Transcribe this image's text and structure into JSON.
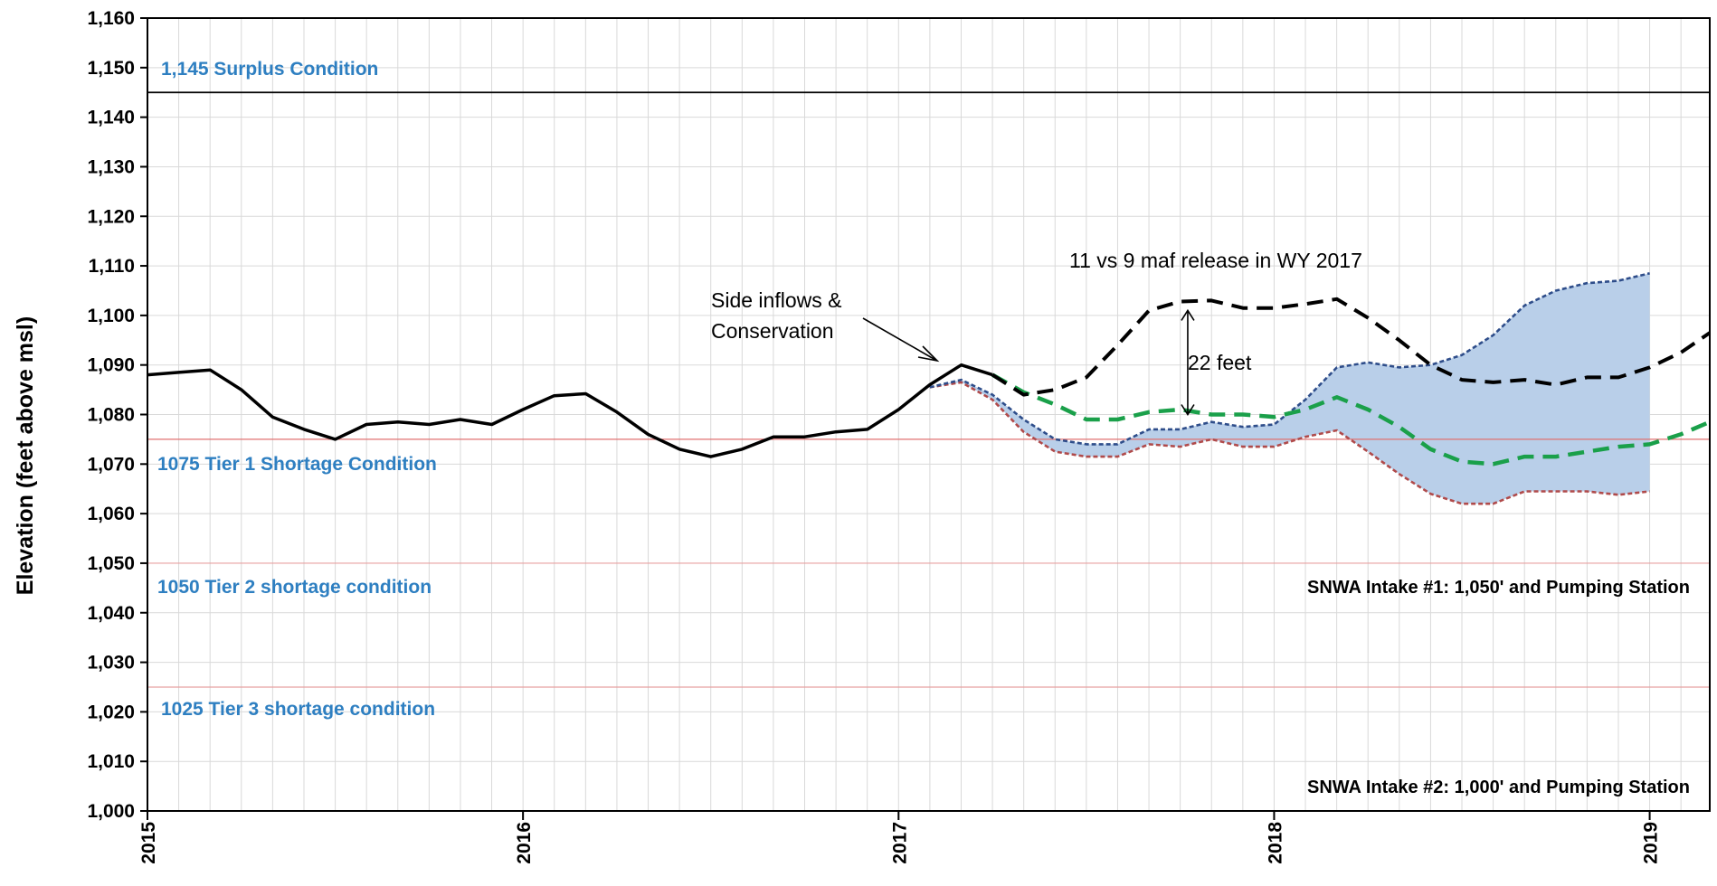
{
  "chart_data": {
    "type": "line",
    "title": "",
    "ylabel": "Elevation (feet above msl)",
    "xlabel": "",
    "xlim": [
      2015.0,
      2019.16
    ],
    "ylim": [
      1000,
      1160
    ],
    "y_ticks": [
      1000,
      1010,
      1020,
      1030,
      1040,
      1050,
      1060,
      1070,
      1080,
      1090,
      1100,
      1110,
      1120,
      1130,
      1140,
      1150,
      1160
    ],
    "y_tick_labels": [
      "1,000",
      "1,010",
      "1,020",
      "1,030",
      "1,040",
      "1,050",
      "1,060",
      "1,070",
      "1,080",
      "1,090",
      "1,100",
      "1,110",
      "1,120",
      "1,130",
      "1,140",
      "1,150",
      "1,160"
    ],
    "x_ticks": [
      2015,
      2016,
      2017,
      2018,
      2019
    ],
    "x_tick_labels": [
      "2015",
      "2016",
      "2017",
      "2018",
      "2019"
    ],
    "grid": true,
    "thresholds": [
      {
        "value": 1145,
        "label": "1,145 Surplus Condition",
        "color": "#000000"
      },
      {
        "value": 1075,
        "label": "1075 Tier 1 Shortage Condition",
        "color": "#e07070"
      },
      {
        "value": 1050,
        "label": "1050 Tier 2 shortage condition",
        "color": "#e8a0a0"
      },
      {
        "value": 1025,
        "label": "1025 Tier 3 shortage condition",
        "color": "#e8a0a0"
      }
    ],
    "intake_labels": [
      {
        "value": 1050,
        "label": "SNWA Intake #1: 1,050' and Pumping Station"
      },
      {
        "value": 1000,
        "label": "SNWA Intake #2: 1,000' and Pumping Station"
      }
    ],
    "series": [
      {
        "style": "solid-black",
        "x": [
          2015.0,
          2015.083,
          2015.167,
          2015.25,
          2015.333,
          2015.417,
          2015.5,
          2015.583,
          2015.667,
          2015.75,
          2015.833,
          2015.917,
          2016.0,
          2016.083,
          2016.167,
          2016.25,
          2016.333,
          2016.417,
          2016.5,
          2016.583,
          2016.667,
          2016.75,
          2016.833,
          2016.917,
          2017.0,
          2017.083,
          2017.167,
          2017.25
        ],
        "y": [
          1088,
          1088.5,
          1089,
          1085,
          1079.5,
          1077,
          1075,
          1078,
          1078.5,
          1078,
          1079,
          1078,
          1081,
          1083.8,
          1084.2,
          1080.5,
          1076,
          1073,
          1071.5,
          1073,
          1075.5,
          1075.5,
          1076.5,
          1077,
          1081,
          1086,
          1090,
          1088
        ]
      },
      {
        "style": "dashed-black",
        "x": [
          2017.25,
          2017.333,
          2017.417,
          2017.5,
          2017.583,
          2017.667,
          2017.75,
          2017.833,
          2017.917,
          2018.0,
          2018.083,
          2018.167,
          2018.25,
          2018.333,
          2018.417,
          2018.5,
          2018.583,
          2018.667,
          2018.75,
          2018.833,
          2018.917,
          2019.0,
          2019.083,
          2019.16
        ],
        "y": [
          1088,
          1084,
          1085,
          1087.5,
          1094,
          1101,
          1102.8,
          1103,
          1101.5,
          1101.5,
          1102.3,
          1103.3,
          1099.5,
          1095,
          1090,
          1087,
          1086.5,
          1087,
          1086,
          1087.5,
          1087.5,
          1089.5,
          1092.5,
          1096.5
        ]
      },
      {
        "style": "dashed-green",
        "x": [
          2017.25,
          2017.333,
          2017.417,
          2017.5,
          2017.583,
          2017.667,
          2017.75,
          2017.833,
          2017.917,
          2018.0,
          2018.083,
          2018.167,
          2018.25,
          2018.333,
          2018.417,
          2018.5,
          2018.583,
          2018.667,
          2018.75,
          2018.833,
          2018.917,
          2019.0,
          2019.083,
          2019.16
        ],
        "y": [
          1088,
          1084.5,
          1082,
          1079,
          1079,
          1080.5,
          1081,
          1080,
          1080,
          1079.5,
          1081,
          1083.5,
          1081,
          1077.5,
          1073,
          1070.5,
          1070,
          1071.5,
          1071.5,
          1072.5,
          1073.5,
          1074,
          1076,
          1078.5
        ]
      },
      {
        "style": "dotted-blue",
        "x": [
          2017.083,
          2017.167,
          2017.25,
          2017.333,
          2017.417,
          2017.5,
          2017.583,
          2017.667,
          2017.75,
          2017.833,
          2017.917,
          2018.0,
          2018.083,
          2018.167,
          2018.25,
          2018.333,
          2018.417,
          2018.5,
          2018.583,
          2018.667,
          2018.75,
          2018.833,
          2018.917,
          2019.0
        ],
        "y": [
          1085.5,
          1087,
          1084,
          1079,
          1075,
          1074,
          1074,
          1077,
          1077,
          1078.5,
          1077.5,
          1078,
          1083,
          1089.5,
          1090.5,
          1089.5,
          1090,
          1092,
          1096,
          1102,
          1105,
          1106.5,
          1107,
          1108.5
        ]
      },
      {
        "style": "dotted-red",
        "x": [
          2017.083,
          2017.167,
          2017.25,
          2017.333,
          2017.417,
          2017.5,
          2017.583,
          2017.667,
          2017.75,
          2017.833,
          2017.917,
          2018.0,
          2018.083,
          2018.167,
          2018.25,
          2018.333,
          2018.417,
          2018.5,
          2018.583,
          2018.667,
          2018.75,
          2018.833,
          2018.917,
          2019.0
        ],
        "y": [
          1085.5,
          1086.5,
          1083,
          1076.5,
          1072.5,
          1071.5,
          1071.5,
          1074,
          1073.5,
          1075,
          1073.5,
          1073.5,
          1075.5,
          1076.8,
          1072.5,
          1068,
          1064,
          1062,
          1062,
          1064.5,
          1064.5,
          1064.5,
          1063.8,
          1064.5
        ]
      }
    ],
    "annotations": {
      "side_inflows_line1": "Side inflows &",
      "side_inflows_line2": "Conservation",
      "release_note": "11 vs 9 maf release in WY 2017",
      "gap_label": "22 feet",
      "gap_x": 2017.77,
      "gap_from": 1101,
      "gap_to": 1080
    }
  }
}
